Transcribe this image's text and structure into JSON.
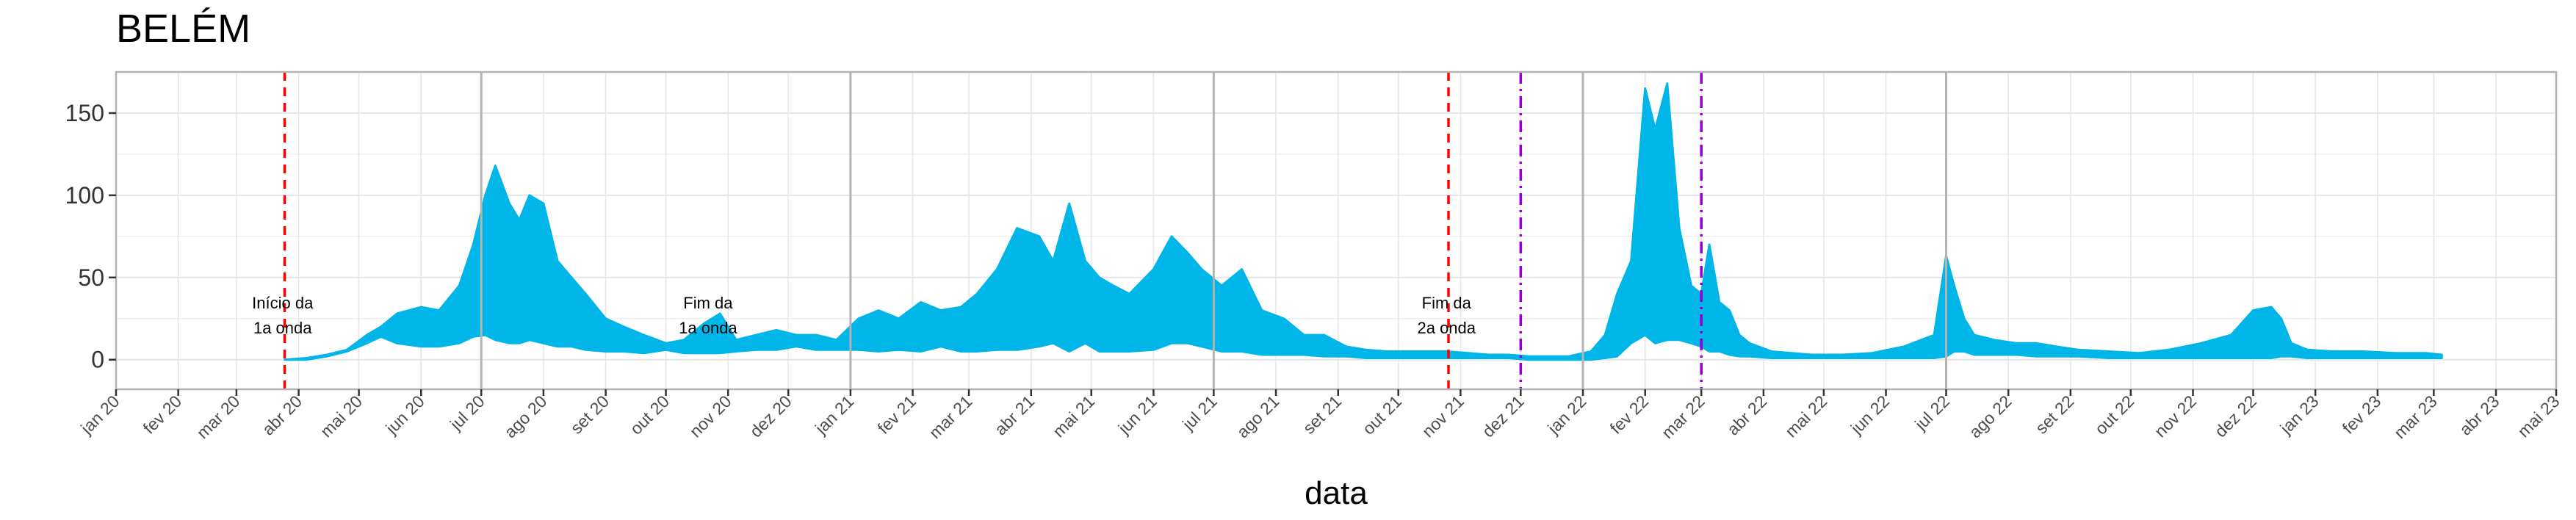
{
  "chart_data": {
    "type": "area",
    "title": "BELÉM",
    "xlabel": "data",
    "ylabel": "",
    "ylim": [
      -18,
      175
    ],
    "yticks": [
      0,
      50,
      100,
      150
    ],
    "xlim": [
      "2020-01-01",
      "2023-05-01"
    ],
    "grid": true,
    "legend": "none",
    "colors": {
      "series": "#00B5E8",
      "onda_line": "#FF0000",
      "variant_line": "#9400D3",
      "year_line": "#B3B3B3",
      "grid": "#E6E6E6",
      "panel_border": "#B3B3B3"
    },
    "x_ticks": [
      {
        "date": "2020-01-01",
        "label": "jan 20"
      },
      {
        "date": "2020-02-01",
        "label": "fev 20"
      },
      {
        "date": "2020-03-01",
        "label": "mar 20"
      },
      {
        "date": "2020-04-01",
        "label": "abr 20"
      },
      {
        "date": "2020-05-01",
        "label": "mai 20"
      },
      {
        "date": "2020-06-01",
        "label": "jun 20"
      },
      {
        "date": "2020-07-01",
        "label": "jul 20"
      },
      {
        "date": "2020-08-01",
        "label": "ago 20"
      },
      {
        "date": "2020-09-01",
        "label": "set 20"
      },
      {
        "date": "2020-10-01",
        "label": "out 20"
      },
      {
        "date": "2020-11-01",
        "label": "nov 20"
      },
      {
        "date": "2020-12-01",
        "label": "dez 20"
      },
      {
        "date": "2021-01-01",
        "label": "jan 21"
      },
      {
        "date": "2021-02-01",
        "label": "fev 21"
      },
      {
        "date": "2021-03-01",
        "label": "mar 21"
      },
      {
        "date": "2021-04-01",
        "label": "abr 21"
      },
      {
        "date": "2021-05-01",
        "label": "mai 21"
      },
      {
        "date": "2021-06-01",
        "label": "jun 21"
      },
      {
        "date": "2021-07-01",
        "label": "jul 21"
      },
      {
        "date": "2021-08-01",
        "label": "ago 21"
      },
      {
        "date": "2021-09-01",
        "label": "set 21"
      },
      {
        "date": "2021-10-01",
        "label": "out 21"
      },
      {
        "date": "2021-11-01",
        "label": "nov 21"
      },
      {
        "date": "2021-12-01",
        "label": "dez 21"
      },
      {
        "date": "2022-01-01",
        "label": "jan 22"
      },
      {
        "date": "2022-02-01",
        "label": "fev 22"
      },
      {
        "date": "2022-03-01",
        "label": "mar 22"
      },
      {
        "date": "2022-04-01",
        "label": "abr 22"
      },
      {
        "date": "2022-05-01",
        "label": "mai 22"
      },
      {
        "date": "2022-06-01",
        "label": "jun 22"
      },
      {
        "date": "2022-07-01",
        "label": "jul 22"
      },
      {
        "date": "2022-08-01",
        "label": "ago 22"
      },
      {
        "date": "2022-09-01",
        "label": "set 22"
      },
      {
        "date": "2022-10-01",
        "label": "out 22"
      },
      {
        "date": "2022-11-01",
        "label": "nov 22"
      },
      {
        "date": "2022-12-01",
        "label": "dez 22"
      },
      {
        "date": "2023-01-01",
        "label": "jan 23"
      },
      {
        "date": "2023-02-01",
        "label": "fev 23"
      },
      {
        "date": "2023-03-01",
        "label": "mar 23"
      },
      {
        "date": "2023-04-01",
        "label": "abr 23"
      },
      {
        "date": "2023-05-01",
        "label": "mai 23"
      }
    ],
    "year_lines": [
      "2020-07-01",
      "2021-01-01",
      "2021-07-01",
      "2022-01-01",
      "2022-07-01"
    ],
    "reference_lines": [
      {
        "date": "2020-03-25",
        "style": "dashed",
        "color": "#FF0000"
      },
      {
        "date": "2021-10-26",
        "style": "dashed",
        "color": "#FF0000"
      },
      {
        "date": "2021-12-01",
        "style": "dashdot",
        "color": "#9400D3"
      },
      {
        "date": "2022-03-01",
        "style": "dashdot",
        "color": "#9400D3"
      }
    ],
    "annotations": [
      {
        "date": "2020-03-24",
        "y": 40,
        "lines": [
          "Início da",
          "1a onda"
        ]
      },
      {
        "date": "2020-10-22",
        "y": 40,
        "lines": [
          "Fim da",
          "1a onda"
        ]
      },
      {
        "date": "2021-10-25",
        "y": 40,
        "lines": [
          "Fim da",
          "2a onda"
        ]
      }
    ],
    "series": [
      {
        "x": [
          "2020-03-25",
          "2020-04-05",
          "2020-04-15",
          "2020-04-25",
          "2020-05-05",
          "2020-05-12",
          "2020-05-20",
          "2020-06-01",
          "2020-06-10",
          "2020-06-20",
          "2020-06-27",
          "2020-07-03",
          "2020-07-08",
          "2020-07-15",
          "2020-07-20",
          "2020-07-25",
          "2020-08-01",
          "2020-08-08",
          "2020-08-15",
          "2020-08-22",
          "2020-09-01",
          "2020-09-10",
          "2020-09-20",
          "2020-10-01",
          "2020-10-10",
          "2020-10-20",
          "2020-10-28",
          "2020-11-05",
          "2020-11-15",
          "2020-11-25",
          "2020-12-05",
          "2020-12-15",
          "2020-12-25",
          "2021-01-05",
          "2021-01-15",
          "2021-01-25",
          "2021-02-05",
          "2021-02-15",
          "2021-02-25",
          "2021-03-05",
          "2021-03-15",
          "2021-03-25",
          "2021-04-05",
          "2021-04-12",
          "2021-04-20",
          "2021-04-28",
          "2021-05-05",
          "2021-05-12",
          "2021-05-20",
          "2021-06-01",
          "2021-06-10",
          "2021-06-18",
          "2021-06-25",
          "2021-07-05",
          "2021-07-15",
          "2021-07-25",
          "2021-08-05",
          "2021-08-15",
          "2021-08-25",
          "2021-09-05",
          "2021-09-15",
          "2021-09-25",
          "2021-10-05",
          "2021-10-15",
          "2021-10-25",
          "2021-11-05",
          "2021-11-15",
          "2021-11-25",
          "2021-12-05",
          "2021-12-15",
          "2021-12-25",
          "2022-01-05",
          "2022-01-12",
          "2022-01-18",
          "2022-01-25",
          "2022-02-01",
          "2022-02-06",
          "2022-02-12",
          "2022-02-18",
          "2022-02-24",
          "2022-03-01",
          "2022-03-05",
          "2022-03-10",
          "2022-03-15",
          "2022-03-20",
          "2022-03-25",
          "2022-04-05",
          "2022-04-15",
          "2022-04-25",
          "2022-05-10",
          "2022-05-25",
          "2022-06-10",
          "2022-06-25",
          "2022-07-01",
          "2022-07-05",
          "2022-07-10",
          "2022-07-15",
          "2022-07-25",
          "2022-08-05",
          "2022-08-15",
          "2022-08-25",
          "2022-09-05",
          "2022-09-20",
          "2022-10-05",
          "2022-10-20",
          "2022-11-05",
          "2022-11-20",
          "2022-12-01",
          "2022-12-10",
          "2022-12-15",
          "2022-12-20",
          "2022-12-28",
          "2023-01-10",
          "2023-01-25",
          "2023-02-10",
          "2023-02-25",
          "2023-03-05"
        ],
        "low": [
          0,
          0,
          2,
          5,
          10,
          14,
          10,
          8,
          8,
          10,
          14,
          15,
          12,
          10,
          10,
          12,
          10,
          8,
          8,
          6,
          5,
          5,
          4,
          6,
          4,
          4,
          4,
          5,
          6,
          6,
          8,
          6,
          6,
          6,
          5,
          6,
          5,
          8,
          5,
          5,
          6,
          6,
          8,
          10,
          5,
          10,
          5,
          5,
          5,
          6,
          10,
          10,
          8,
          5,
          5,
          3,
          3,
          3,
          2,
          2,
          1,
          1,
          1,
          1,
          1,
          1,
          1,
          1,
          0,
          0,
          0,
          0,
          1,
          2,
          10,
          15,
          10,
          12,
          12,
          10,
          8,
          5,
          5,
          3,
          2,
          2,
          1,
          1,
          1,
          1,
          1,
          1,
          1,
          2,
          5,
          5,
          3,
          3,
          3,
          2,
          2,
          2,
          1,
          1,
          1,
          1,
          1,
          1,
          1,
          2,
          2,
          1,
          1,
          1,
          1,
          1,
          1
        ],
        "high": [
          0,
          1,
          3,
          6,
          15,
          20,
          28,
          32,
          30,
          45,
          70,
          100,
          118,
          95,
          85,
          100,
          95,
          60,
          50,
          40,
          25,
          20,
          15,
          10,
          12,
          22,
          28,
          12,
          15,
          18,
          15,
          15,
          12,
          25,
          30,
          25,
          35,
          30,
          32,
          40,
          55,
          80,
          75,
          60,
          95,
          60,
          50,
          45,
          40,
          55,
          75,
          65,
          55,
          45,
          55,
          30,
          25,
          15,
          15,
          8,
          6,
          5,
          5,
          5,
          5,
          4,
          3,
          3,
          2,
          2,
          2,
          5,
          15,
          40,
          60,
          165,
          140,
          168,
          80,
          45,
          40,
          70,
          35,
          30,
          15,
          10,
          5,
          4,
          3,
          3,
          4,
          8,
          15,
          63,
          45,
          25,
          15,
          12,
          10,
          10,
          8,
          6,
          5,
          4,
          6,
          10,
          15,
          30,
          32,
          25,
          10,
          6,
          5,
          5,
          4,
          4,
          3
        ]
      }
    ]
  }
}
